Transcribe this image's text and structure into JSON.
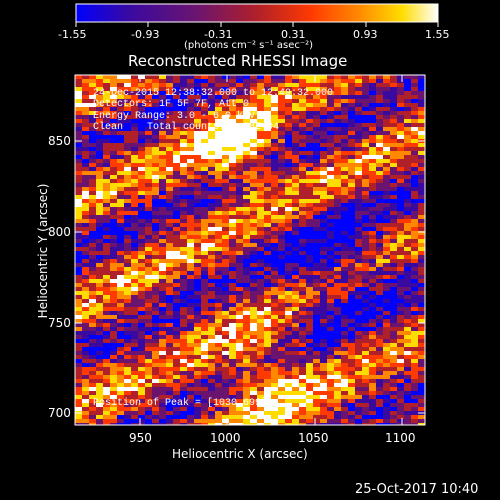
{
  "colorbar": {
    "ticks": [
      "-1.55",
      "-0.93",
      "-0.31",
      "0.31",
      "0.93",
      "1.55"
    ],
    "unit_label": "(photons cm⁻² s⁻¹ asec⁻²)",
    "colors": [
      "#0000ff",
      "#3a0aa0",
      "#6a1470",
      "#b0202a",
      "#ff3a00",
      "#ff8800",
      "#ffdc00",
      "#ffffff"
    ]
  },
  "plot": {
    "title": "Reconstructed RHESSI Image",
    "xlabel": "Heliocentric X (arcsec)",
    "ylabel": "Heliocentric Y (arcsec)",
    "x_ticks": [
      "950",
      "1000",
      "1050",
      "1100"
    ],
    "y_ticks": [
      "700",
      "750",
      "800",
      "850"
    ],
    "info_lines": [
      "24-Dec-2015 12:38:32.000 to 12:49:32.000",
      "Detectors: 1F 5F 7F, Att 0",
      "Energy Range: 3.0 - 6.0 keV",
      "Clean    Total counts: 5.28E+04"
    ],
    "peak_label": "Position of Peak = [1030,699]"
  },
  "footer": {
    "timestamp": "25-Oct-2017 10:40"
  }
}
